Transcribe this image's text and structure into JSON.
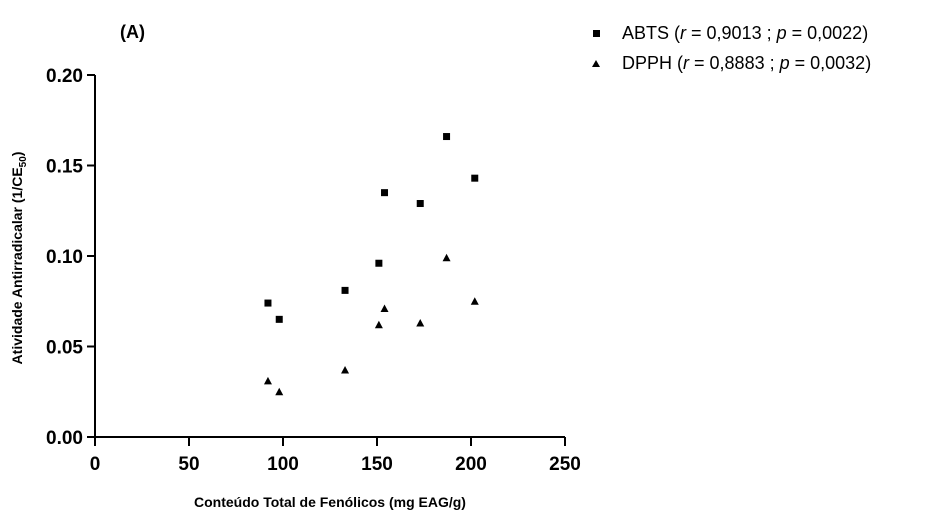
{
  "chart_data": {
    "type": "scatter",
    "panel_label": "(A)",
    "xlabel": "Conteúdo Total de Fenólicos (mg EAG/g)",
    "ylabel": "Atividade Antirradicalar (1/CE",
    "ylabel_sub": "50",
    "ylabel_close": ")",
    "xlim": [
      0,
      250
    ],
    "ylim": [
      0,
      0.2
    ],
    "x_ticks": [
      0,
      50,
      100,
      150,
      200,
      250
    ],
    "x_tick_labels": [
      "0",
      "50",
      "100",
      "150",
      "200",
      "250"
    ],
    "y_ticks": [
      0,
      0.05,
      0.1,
      0.15,
      0.2
    ],
    "y_tick_labels": [
      "0.00",
      "0.05",
      "0.10",
      "0.15",
      "0.20"
    ],
    "grid": false,
    "legend_position": "top-right, outside plot",
    "series": [
      {
        "name": "ABTS",
        "marker": "square",
        "r_value": "0,9013",
        "p_value": "0,0022",
        "points": [
          {
            "x": 92,
            "y": 0.074
          },
          {
            "x": 98,
            "y": 0.065
          },
          {
            "x": 133,
            "y": 0.081
          },
          {
            "x": 151,
            "y": 0.096
          },
          {
            "x": 154,
            "y": 0.135
          },
          {
            "x": 173,
            "y": 0.129
          },
          {
            "x": 187,
            "y": 0.166
          },
          {
            "x": 202,
            "y": 0.143
          }
        ]
      },
      {
        "name": "DPPH",
        "marker": "triangle",
        "r_value": "0,8883",
        "p_value": "0,0032",
        "points": [
          {
            "x": 92,
            "y": 0.031
          },
          {
            "x": 98,
            "y": 0.025
          },
          {
            "x": 133,
            "y": 0.037
          },
          {
            "x": 151,
            "y": 0.062
          },
          {
            "x": 154,
            "y": 0.071
          },
          {
            "x": 173,
            "y": 0.063
          },
          {
            "x": 187,
            "y": 0.099
          },
          {
            "x": 202,
            "y": 0.075
          }
        ]
      }
    ]
  },
  "legend": {
    "items": [
      {
        "name": "ABTS",
        "r_label": "r",
        "r_value": "0,9013",
        "p_label": "p",
        "p_value": "0,0022"
      },
      {
        "name": "DPPH",
        "r_label": "r",
        "r_value": "0,8883",
        "p_label": "p",
        "p_value": "0,0032"
      }
    ]
  }
}
